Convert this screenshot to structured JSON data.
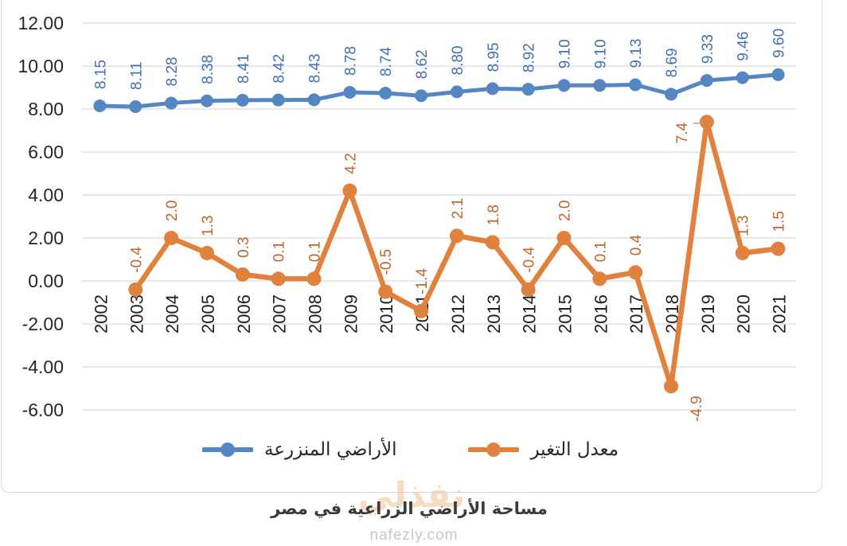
{
  "chart_data": {
    "type": "line",
    "title": "مساحة الأراضي الزراعية في مصر",
    "categories": [
      "2002",
      "2003",
      "2004",
      "2005",
      "2006",
      "2007",
      "2008",
      "2009",
      "2010",
      "2011",
      "2012",
      "2013",
      "2014",
      "2015",
      "2016",
      "2017",
      "2018",
      "2019",
      "2020",
      "2021"
    ],
    "series": [
      {
        "name": "الأراضي المنزرعة",
        "color": "#5486c4",
        "label_color": "#4170b4",
        "values": [
          8.15,
          8.11,
          8.28,
          8.38,
          8.41,
          8.42,
          8.43,
          8.78,
          8.74,
          8.62,
          8.8,
          8.95,
          8.92,
          9.1,
          9.1,
          9.13,
          8.69,
          9.33,
          9.46,
          9.6
        ],
        "labels": [
          "8.15",
          "8.11",
          "8.28",
          "8.38",
          "8.41",
          "8.42",
          "8.43",
          "8.78",
          "8.74",
          "8.62",
          "8.80",
          "8.95",
          "8.92",
          "9.10",
          "9.10",
          "9.13",
          "8.69",
          "9.33",
          "9.46",
          "9.60"
        ]
      },
      {
        "name": "معدل التغير",
        "color": "#e0823e",
        "label_color": "#c2652d",
        "values": [
          null,
          -0.4,
          2.0,
          1.3,
          0.3,
          0.1,
          0.1,
          4.2,
          -0.5,
          -1.4,
          2.1,
          1.8,
          -0.4,
          2.0,
          0.1,
          0.4,
          -4.9,
          7.4,
          1.3,
          1.5
        ],
        "labels": [
          null,
          "-0.4",
          "2.0",
          "1.3",
          "0.3",
          "0.1",
          "0.1",
          "4.2",
          "-0.5",
          "-1.4",
          "2.1",
          "1.8",
          "-0.4",
          "2.0",
          "0.1",
          "0.4",
          "-4.9",
          "7.4",
          "1.3",
          "1.5"
        ],
        "label_overrides": {
          "2018": "below-right",
          "2019": "left-leader"
        }
      }
    ],
    "y_axis": {
      "min": -6,
      "max": 12,
      "step": 2,
      "tick_labels": [
        "12.00",
        "10.00",
        "8.00",
        "6.00",
        "4.00",
        "2.00",
        "0.00",
        "-2.00",
        "-4.00",
        "-6.00"
      ]
    },
    "grid": true,
    "legend_position": "bottom",
    "colors": {
      "grid": "#d9d9d9",
      "frame": "#d9d9d9",
      "axis_text": "#262626",
      "leader": "#a6a6a6"
    }
  },
  "watermark": {
    "arabic": "نفذلي",
    "domain": "nafezly.com"
  }
}
